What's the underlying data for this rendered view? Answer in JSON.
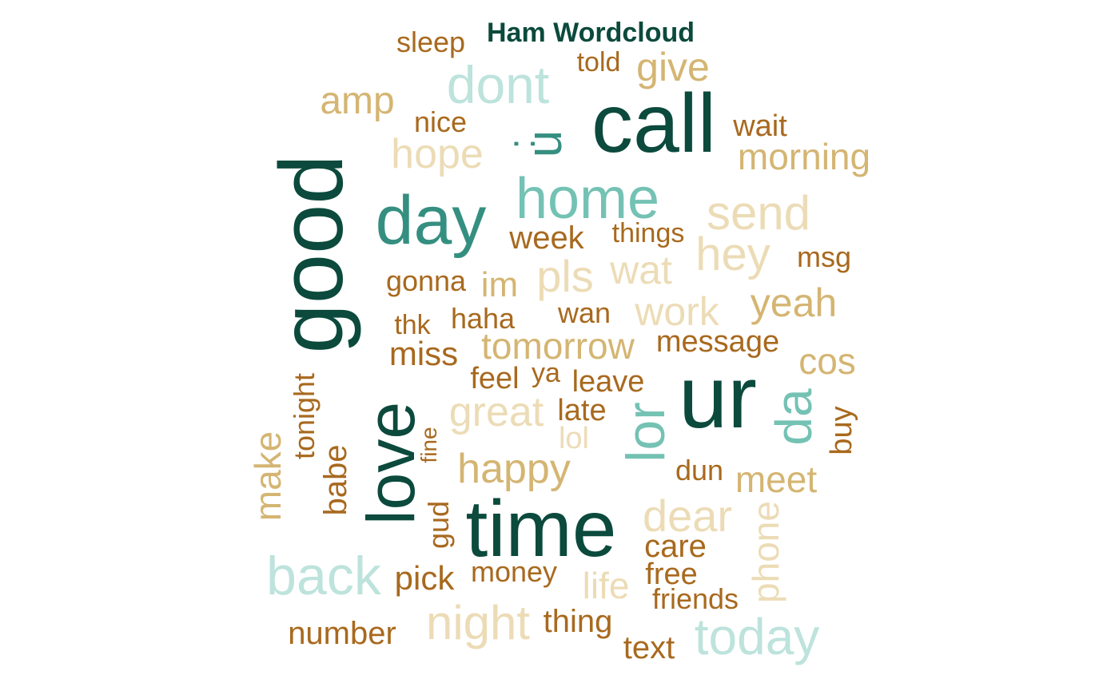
{
  "title": "Ham Wordcloud",
  "colors": {
    "darkest": "#0b4a3c",
    "teal": "#358f80",
    "mint": "#74c2b4",
    "pale_mint": "#bde3dc",
    "brown": "#a8691e",
    "tan": "#d4b572",
    "cream": "#ecdcb6"
  },
  "words": [
    {
      "text": "call",
      "color": "darkest"
    },
    {
      "text": "ur",
      "color": "darkest"
    },
    {
      "text": "good",
      "color": "darkest"
    },
    {
      "text": "time",
      "color": "darkest"
    },
    {
      "text": "love",
      "color": "darkest"
    },
    {
      "text": "day",
      "color": "teal"
    },
    {
      "text": "u",
      "color": "teal"
    },
    {
      "text": ":",
      "color": "teal"
    },
    {
      "text": "home",
      "color": "mint"
    },
    {
      "text": "lor",
      "color": "mint"
    },
    {
      "text": "da",
      "color": "mint"
    },
    {
      "text": "dont",
      "color": "pale_mint"
    },
    {
      "text": "back",
      "color": "pale_mint"
    },
    {
      "text": "today",
      "color": "pale_mint"
    },
    {
      "text": "sleep",
      "color": "brown"
    },
    {
      "text": "told",
      "color": "brown"
    },
    {
      "text": "give",
      "color": "tan"
    },
    {
      "text": "amp",
      "color": "tan"
    },
    {
      "text": "nice",
      "color": "brown"
    },
    {
      "text": "wait",
      "color": "brown"
    },
    {
      "text": "morning",
      "color": "tan"
    },
    {
      "text": "hope",
      "color": "cream"
    },
    {
      "text": "send",
      "color": "cream"
    },
    {
      "text": "things",
      "color": "brown"
    },
    {
      "text": "week",
      "color": "brown"
    },
    {
      "text": "hey",
      "color": "cream"
    },
    {
      "text": "msg",
      "color": "brown"
    },
    {
      "text": "wat",
      "color": "cream"
    },
    {
      "text": "pls",
      "color": "cream"
    },
    {
      "text": "im",
      "color": "tan"
    },
    {
      "text": "gonna",
      "color": "brown"
    },
    {
      "text": "yeah",
      "color": "tan"
    },
    {
      "text": "work",
      "color": "cream"
    },
    {
      "text": "wan",
      "color": "brown"
    },
    {
      "text": "haha",
      "color": "brown"
    },
    {
      "text": "thk",
      "color": "brown"
    },
    {
      "text": "tomorrow",
      "color": "tan"
    },
    {
      "text": "message",
      "color": "brown"
    },
    {
      "text": "miss",
      "color": "brown"
    },
    {
      "text": "cos",
      "color": "tan"
    },
    {
      "text": "feel",
      "color": "brown"
    },
    {
      "text": "ya",
      "color": "brown"
    },
    {
      "text": "leave",
      "color": "brown"
    },
    {
      "text": "great",
      "color": "cream"
    },
    {
      "text": "late",
      "color": "brown"
    },
    {
      "text": "lol",
      "color": "cream"
    },
    {
      "text": "buy",
      "color": "brown"
    },
    {
      "text": "tonight",
      "color": "brown"
    },
    {
      "text": "fine",
      "color": "brown"
    },
    {
      "text": "make",
      "color": "tan"
    },
    {
      "text": "happy",
      "color": "tan"
    },
    {
      "text": "dun",
      "color": "brown"
    },
    {
      "text": "meet",
      "color": "tan"
    },
    {
      "text": "babe",
      "color": "brown"
    },
    {
      "text": "gud",
      "color": "brown"
    },
    {
      "text": "dear",
      "color": "cream"
    },
    {
      "text": "phone",
      "color": "cream"
    },
    {
      "text": "care",
      "color": "brown"
    },
    {
      "text": "money",
      "color": "brown"
    },
    {
      "text": "pick",
      "color": "brown"
    },
    {
      "text": "life",
      "color": "cream"
    },
    {
      "text": "free",
      "color": "brown"
    },
    {
      "text": "friends",
      "color": "brown"
    },
    {
      "text": "night",
      "color": "cream"
    },
    {
      "text": "thing",
      "color": "brown"
    },
    {
      "text": "number",
      "color": "brown"
    },
    {
      "text": "text",
      "color": "brown"
    }
  ]
}
